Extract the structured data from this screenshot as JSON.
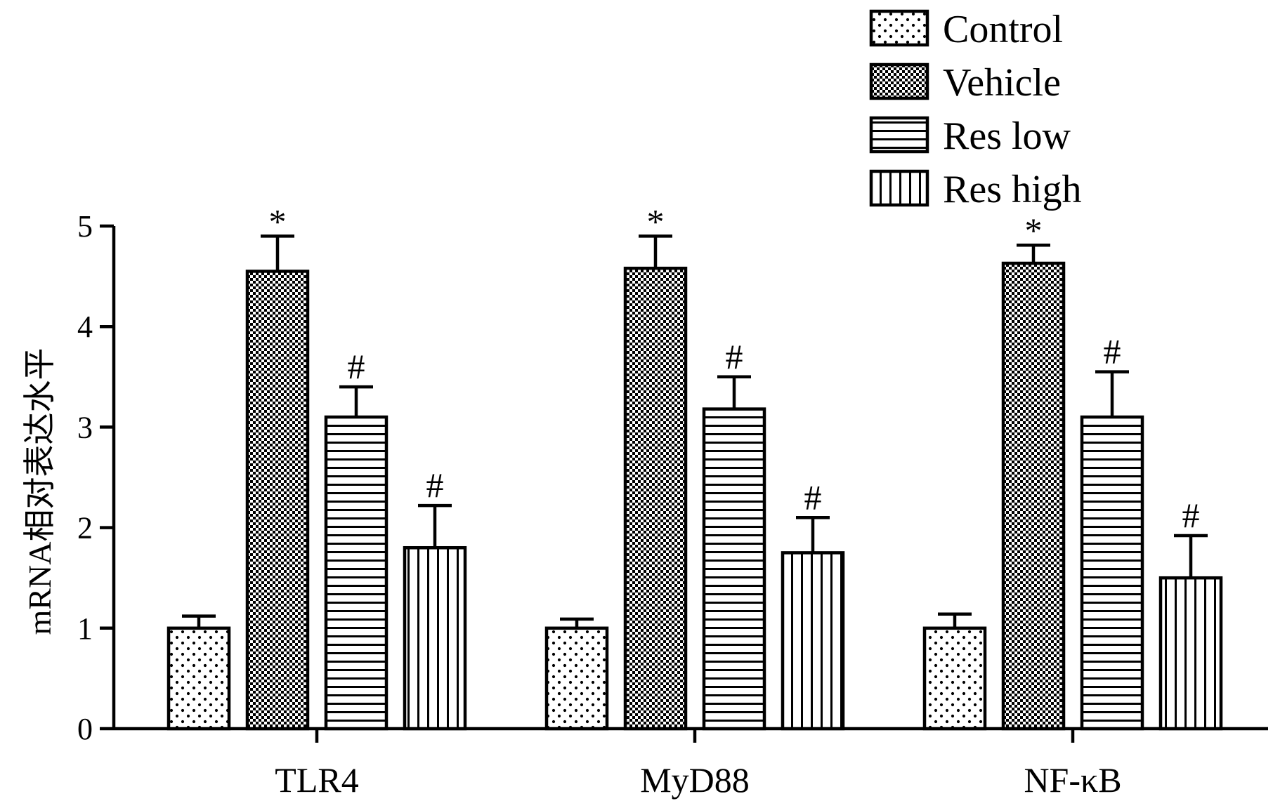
{
  "chart_data": {
    "type": "bar",
    "ylabel": "mRNA相对表达水平",
    "xlabel": "",
    "ylim": [
      0,
      5
    ],
    "yticks": [
      "0",
      "1",
      "2",
      "3",
      "4",
      "5"
    ],
    "categories": [
      "TLR4",
      "MyD88",
      "NF-κB"
    ],
    "legend_position": "top-right",
    "series": [
      {
        "name": "Control",
        "pattern": "dots",
        "values": [
          1.0,
          1.0,
          1.0
        ],
        "errors": [
          0.12,
          0.09,
          0.14
        ],
        "marks": [
          "",
          "",
          ""
        ]
      },
      {
        "name": "Vehicle",
        "pattern": "checker",
        "values": [
          4.55,
          4.58,
          4.63
        ],
        "errors": [
          0.35,
          0.32,
          0.18
        ],
        "marks": [
          "*",
          "*",
          "*"
        ]
      },
      {
        "name": "Res low",
        "pattern": "horizontal",
        "values": [
          3.1,
          3.18,
          3.1
        ],
        "errors": [
          0.3,
          0.32,
          0.45
        ],
        "marks": [
          "#",
          "#",
          "#"
        ]
      },
      {
        "name": "Res high",
        "pattern": "vertical",
        "values": [
          1.8,
          1.75,
          1.5
        ],
        "errors": [
          0.42,
          0.35,
          0.42
        ],
        "marks": [
          "#",
          "#",
          "#"
        ]
      }
    ]
  }
}
